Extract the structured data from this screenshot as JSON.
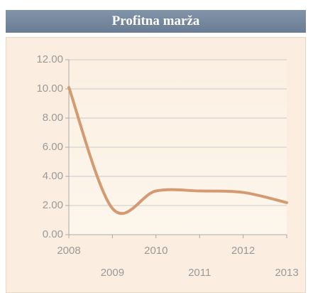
{
  "chart_data": {
    "type": "line",
    "title": "Profitna marža",
    "x": [
      2008,
      2009,
      2010,
      2011,
      2012,
      2013
    ],
    "series": [
      {
        "color": "#d69a72",
        "values": [
          10.1,
          1.8,
          3.0,
          3.0,
          2.9,
          2.2
        ]
      }
    ],
    "xlim": [
      2008,
      2013
    ],
    "xticks": [
      2008,
      2009,
      2010,
      2011,
      2012,
      2013
    ],
    "ylim": [
      0,
      12
    ],
    "yticks": [
      {
        "value": 0,
        "label": "0.00"
      },
      {
        "value": 2,
        "label": "2.00"
      },
      {
        "value": 4,
        "label": "4.00"
      },
      {
        "value": 6,
        "label": "6.00"
      },
      {
        "value": 8,
        "label": "8.00"
      },
      {
        "value": 10,
        "label": "10.00"
      },
      {
        "value": 12,
        "label": "12.00"
      }
    ],
    "grid": true
  }
}
